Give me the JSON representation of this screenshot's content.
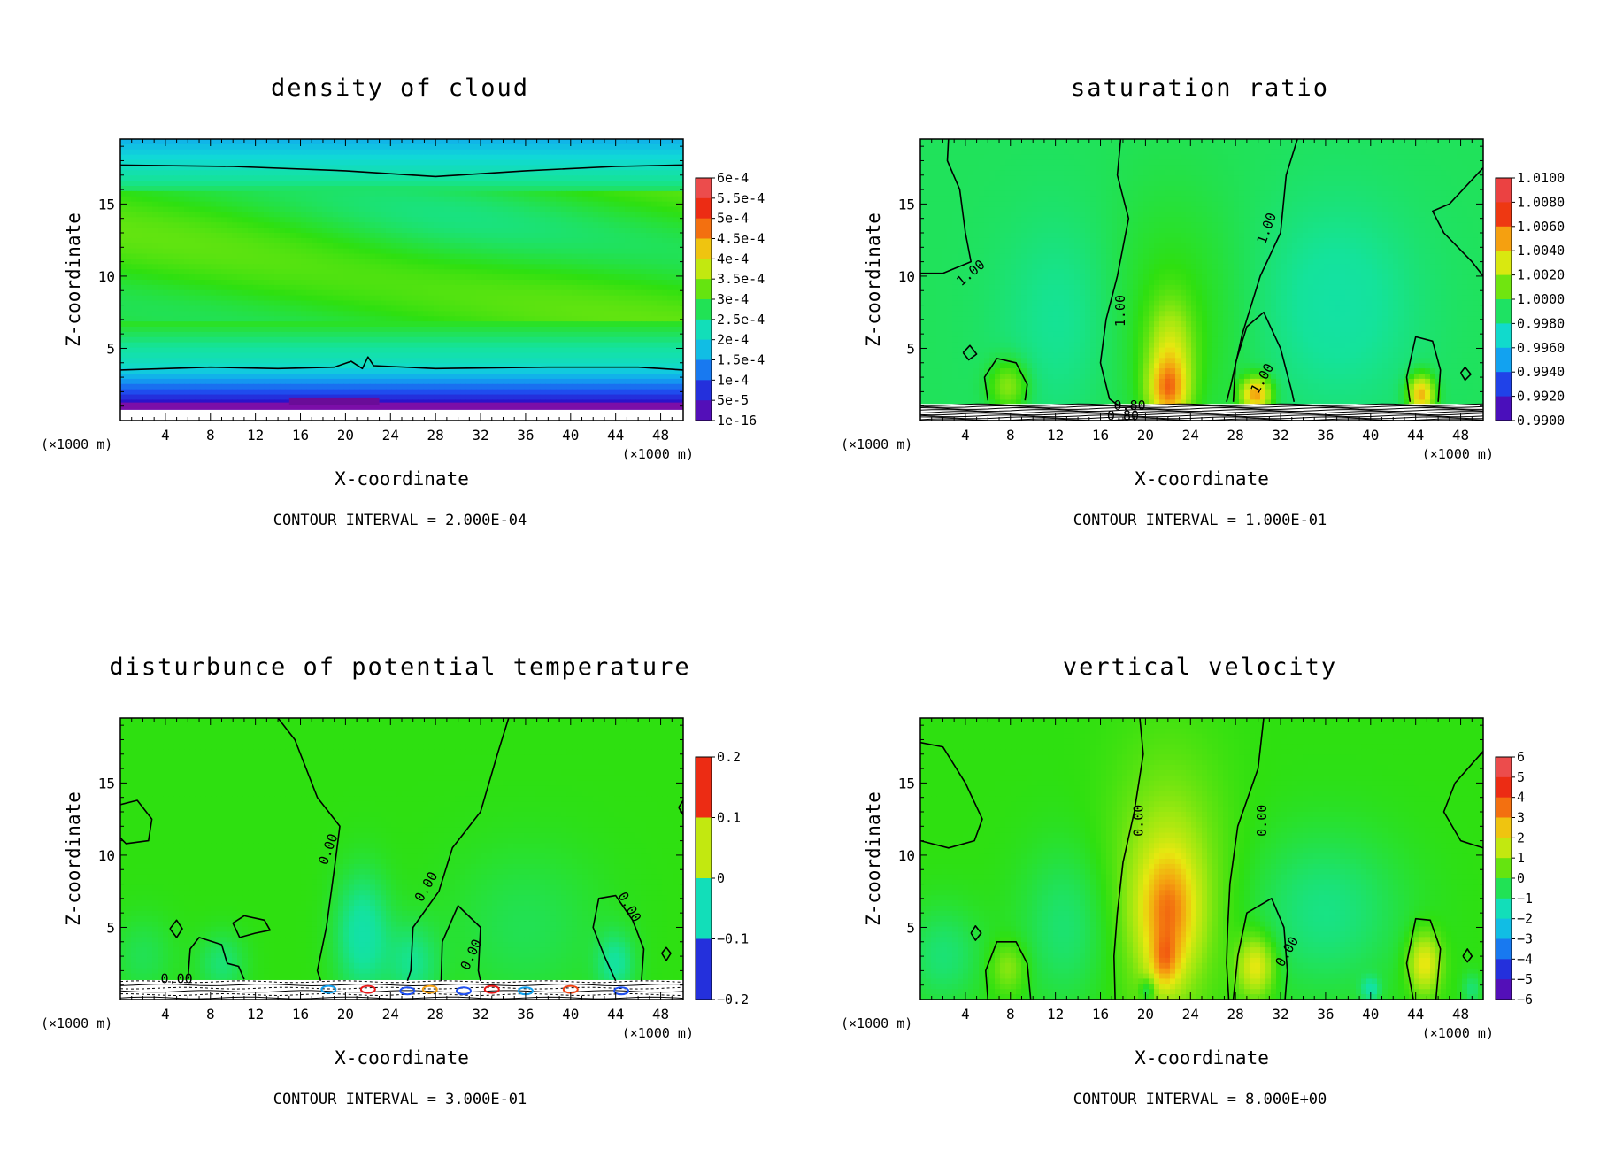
{
  "chart_data": [
    {
      "type": "heatmap",
      "title": "density of cloud",
      "xlabel": "X-coordinate",
      "ylabel": "Z-coordinate",
      "x_unit": "(×1000 m)",
      "z_unit": "(×1000 m)",
      "x_ticks": [
        4,
        8,
        12,
        16,
        20,
        24,
        28,
        32,
        36,
        40,
        44,
        48
      ],
      "z_ticks": [
        5,
        10,
        15
      ],
      "xlim": [
        0,
        50
      ],
      "zlim": [
        0,
        19.5
      ],
      "colorbar_labels": [
        "6e-4",
        "5.5e-4",
        "5e-4",
        "4.5e-4",
        "4e-4",
        "3.5e-4",
        "3e-4",
        "2.5e-4",
        "2e-4",
        "1.5e-4",
        "1e-4",
        "5e-5",
        "1e-16"
      ],
      "contour_labels": [],
      "contour_interval": "CONTOUR INTERVAL = 2.000E-04",
      "style": "cloud"
    },
    {
      "type": "heatmap",
      "title": "saturation ratio",
      "xlabel": "X-coordinate",
      "ylabel": "Z-coordinate",
      "x_unit": "(×1000 m)",
      "z_unit": "(×1000 m)",
      "x_ticks": [
        4,
        8,
        12,
        16,
        20,
        24,
        28,
        32,
        36,
        40,
        44,
        48
      ],
      "z_ticks": [
        5,
        10,
        15
      ],
      "xlim": [
        0,
        50
      ],
      "zlim": [
        0,
        19.5
      ],
      "colorbar_labels": [
        "1.0100",
        "1.0080",
        "1.0060",
        "1.0040",
        "1.0020",
        "1.0000",
        "0.9980",
        "0.9960",
        "0.9940",
        "0.9920",
        "0.9900"
      ],
      "contour_labels": [
        {
          "text": "1.00",
          "x": 4.5,
          "z": 10.2,
          "rot": -40
        },
        {
          "text": "1.00",
          "x": 17.8,
          "z": 7.6,
          "rot": -90
        },
        {
          "text": "1.00",
          "x": 30.4,
          "z": 2.9,
          "rot": -60
        },
        {
          "text": "1.00",
          "x": 30.8,
          "z": 13.3,
          "rot": -70
        },
        {
          "text": "0.80",
          "x": 18.0,
          "z": 0.3,
          "rot": 0
        },
        {
          "text": "0.80",
          "x": 18.6,
          "z": 1.0,
          "rot": 0
        }
      ],
      "contour_interval": "CONTOUR INTERVAL = 1.000E-01",
      "style": "sat"
    },
    {
      "type": "heatmap",
      "title": "disturbunce of potential temperature",
      "xlabel": "X-coordinate",
      "ylabel": "Z-coordinate",
      "x_unit": "(×1000 m)",
      "z_unit": "(×1000 m)",
      "x_ticks": [
        4,
        8,
        12,
        16,
        20,
        24,
        28,
        32,
        36,
        40,
        44,
        48
      ],
      "z_ticks": [
        5,
        10,
        15
      ],
      "xlim": [
        0,
        50
      ],
      "zlim": [
        0,
        19.5
      ],
      "colorbar_labels": [
        "0.2",
        "0.1",
        "0",
        "−0.1",
        "−0.2"
      ],
      "contour_labels": [
        {
          "text": "0.00",
          "x": 18.5,
          "z": 10.4,
          "rot": -70
        },
        {
          "text": "0.00",
          "x": 27.2,
          "z": 7.8,
          "rot": -60
        },
        {
          "text": "0.00",
          "x": 31.2,
          "z": 3.1,
          "rot": -65
        },
        {
          "text": "0.00",
          "x": 45.2,
          "z": 6.4,
          "rot": 60
        },
        {
          "text": "0.00",
          "x": 5.0,
          "z": 1.4,
          "rot": 0
        }
      ],
      "contour_interval": "CONTOUR INTERVAL = 3.000E-01",
      "style": "theta"
    },
    {
      "type": "heatmap",
      "title": "vertical velocity",
      "xlabel": "X-coordinate",
      "ylabel": "Z-coordinate",
      "x_unit": "(×1000 m)",
      "z_unit": "(×1000 m)",
      "x_ticks": [
        4,
        8,
        12,
        16,
        20,
        24,
        28,
        32,
        36,
        40,
        44,
        48
      ],
      "z_ticks": [
        5,
        10,
        15
      ],
      "xlim": [
        0,
        50
      ],
      "zlim": [
        0,
        19.5
      ],
      "colorbar_labels": [
        "6",
        "5",
        "4",
        "3",
        "2",
        "1",
        "0",
        "−1",
        "−2",
        "−3",
        "−4",
        "−5",
        "−6"
      ],
      "contour_labels": [
        {
          "text": "0.00",
          "x": 19.4,
          "z": 12.4,
          "rot": -90
        },
        {
          "text": "0.00",
          "x": 30.4,
          "z": 12.4,
          "rot": -90
        },
        {
          "text": "0.00",
          "x": 32.6,
          "z": 3.3,
          "rot": -60
        }
      ],
      "contour_interval": "CONTOUR INTERVAL = 8.000E+00",
      "style": "w"
    }
  ]
}
